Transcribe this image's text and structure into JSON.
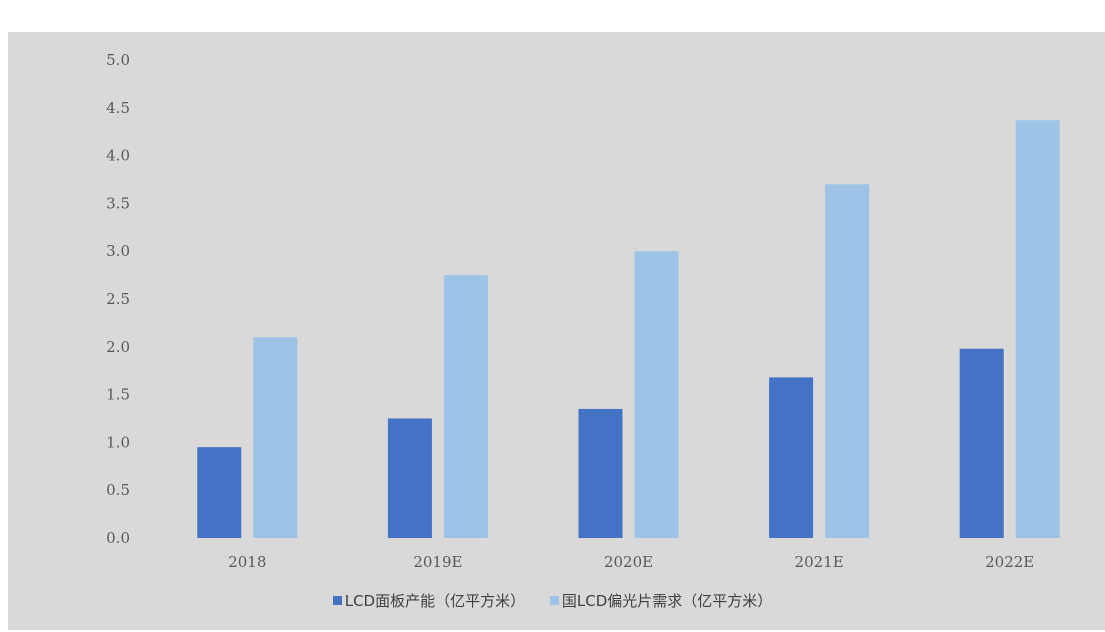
{
  "chart_data": {
    "type": "bar",
    "title": "",
    "xlabel": "",
    "ylabel": "",
    "categories": [
      "2018",
      "2019E",
      "2020E",
      "2021E",
      "2022E"
    ],
    "series": [
      {
        "name": "LCD面板产能（亿平方米）",
        "color": "#4472c4",
        "values": [
          0.95,
          1.25,
          1.35,
          1.68,
          1.98
        ]
      },
      {
        "name": "国LCD偏光片需求（亿平方米）",
        "color": "#9dc3e6",
        "values": [
          2.1,
          2.75,
          3.0,
          3.7,
          4.37
        ]
      }
    ],
    "ylim": [
      0,
      5
    ],
    "yticks": [
      "0.0",
      "0.5",
      "1.0",
      "1.5",
      "2.0",
      "2.5",
      "3.0",
      "3.5",
      "4.0",
      "4.5",
      "5.0"
    ],
    "grid": false,
    "legend_position": "bottom"
  }
}
